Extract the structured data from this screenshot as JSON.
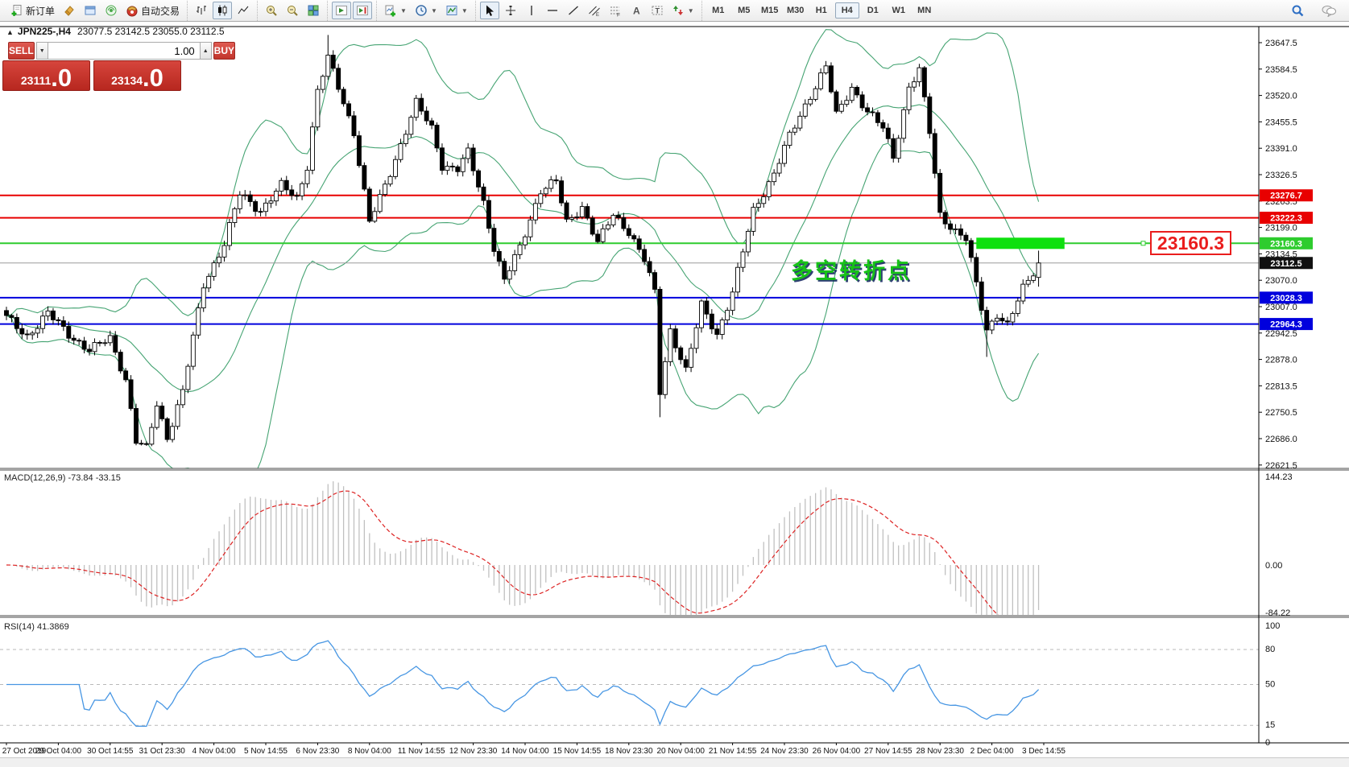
{
  "toolbar": {
    "new_order_label": "新订单",
    "autotrading_label": "自动交易",
    "timeframes": [
      "M1",
      "M5",
      "M15",
      "M30",
      "H1",
      "H4",
      "D1",
      "W1",
      "MN"
    ],
    "active_timeframe": "H4"
  },
  "chart_header": {
    "collapse_glyph": "▲",
    "symbol": "JPN225-,H4",
    "ohlc_text": "23077.5 23142.5 23055.0 23112.5"
  },
  "trade_panel": {
    "sell_label": "SELL",
    "buy_label": "BUY",
    "volume": "1.00",
    "sell_price_main": "23111",
    "sell_price_big": ".0",
    "buy_price_main": "23134",
    "buy_price_big": ".0"
  },
  "annotation": {
    "text": "多空转折点",
    "price_callout": "23160.3"
  },
  "macd_panel": {
    "label": "MACD(12,26,9) -73.84 -33.15",
    "axis_labels": [
      "144.23",
      "0.00",
      "-84.22"
    ]
  },
  "rsi_panel": {
    "label": "RSI(14) 41.3869",
    "axis_labels": [
      "100",
      "80",
      "50",
      "15",
      "0"
    ]
  },
  "colors": {
    "level_red": "#e80000",
    "level_green": "#2ecc2e",
    "level_blue": "#0000dd",
    "highlight_green": "#0ee00e",
    "band_green": "#46a473",
    "macd_hist": "#c0c0c0",
    "macd_signal": "#dd2222",
    "rsi_line": "#4796e3",
    "current_price_line": "#9a9a9a",
    "current_price_box": "#111111"
  },
  "chart_data": {
    "type": "candlestick",
    "symbol": "JPN225-",
    "timeframe": "H4",
    "bars": 200,
    "last_ohlc": {
      "open": 23077.5,
      "high": 23142.5,
      "low": 23055.0,
      "close": 23112.5
    },
    "ylim": [
      22621.5,
      23647.5
    ],
    "price_axis_ticks": [
      "23647.5",
      "23584.5",
      "23520.0",
      "23455.5",
      "23391.0",
      "23326.5",
      "23263.5",
      "23199.0",
      "23134.5",
      "23070.0",
      "23007.0",
      "22942.5",
      "22878.0",
      "22813.5",
      "22750.5",
      "22686.0",
      "22621.5"
    ],
    "time_labels": [
      "27 Oct 2019",
      "29 Oct 04:00",
      "30 Oct 14:55",
      "31 Oct 23:30",
      "4 Nov 04:00",
      "5 Nov 14:55",
      "6 Nov 23:30",
      "8 Nov 04:00",
      "11 Nov 14:55",
      "12 Nov 23:30",
      "14 Nov 04:00",
      "15 Nov 14:55",
      "18 Nov 23:30",
      "20 Nov 04:00",
      "21 Nov 14:55",
      "24 Nov 23:30",
      "26 Nov 04:00",
      "27 Nov 14:55",
      "28 Nov 23:30",
      "2 Dec 04:00",
      "3 Dec 14:55"
    ],
    "bars_per_label": 10,
    "price_anchors": [
      [
        0,
        22980
      ],
      [
        4,
        22935
      ],
      [
        8,
        22990
      ],
      [
        12,
        22940
      ],
      [
        16,
        22900
      ],
      [
        20,
        22930
      ],
      [
        23,
        22830
      ],
      [
        25,
        22680
      ],
      [
        27,
        22660
      ],
      [
        29,
        22770
      ],
      [
        31,
        22690
      ],
      [
        34,
        22800
      ],
      [
        38,
        23060
      ],
      [
        42,
        23160
      ],
      [
        45,
        23280
      ],
      [
        49,
        23240
      ],
      [
        53,
        23300
      ],
      [
        56,
        23270
      ],
      [
        58,
        23350
      ],
      [
        60,
        23530
      ],
      [
        62,
        23610
      ],
      [
        64,
        23540
      ],
      [
        67,
        23430
      ],
      [
        70,
        23210
      ],
      [
        73,
        23300
      ],
      [
        76,
        23400
      ],
      [
        79,
        23500
      ],
      [
        82,
        23440
      ],
      [
        84,
        23350
      ],
      [
        87,
        23340
      ],
      [
        89,
        23380
      ],
      [
        92,
        23260
      ],
      [
        94,
        23150
      ],
      [
        96,
        23070
      ],
      [
        99,
        23150
      ],
      [
        103,
        23290
      ],
      [
        106,
        23310
      ],
      [
        108,
        23210
      ],
      [
        111,
        23250
      ],
      [
        114,
        23160
      ],
      [
        117,
        23230
      ],
      [
        120,
        23190
      ],
      [
        123,
        23120
      ],
      [
        125,
        23040
      ],
      [
        126,
        22800
      ],
      [
        128,
        22950
      ],
      [
        131,
        22850
      ],
      [
        134,
        23010
      ],
      [
        137,
        22940
      ],
      [
        140,
        23040
      ],
      [
        144,
        23240
      ],
      [
        148,
        23330
      ],
      [
        151,
        23420
      ],
      [
        155,
        23520
      ],
      [
        158,
        23590
      ],
      [
        160,
        23470
      ],
      [
        163,
        23540
      ],
      [
        166,
        23480
      ],
      [
        169,
        23440
      ],
      [
        171,
        23370
      ],
      [
        174,
        23540
      ],
      [
        176,
        23580
      ],
      [
        178,
        23430
      ],
      [
        180,
        23230
      ],
      [
        183,
        23190
      ],
      [
        185,
        23170
      ],
      [
        187,
        23060
      ],
      [
        189,
        22950
      ],
      [
        191,
        22990
      ],
      [
        193,
        22960
      ],
      [
        196,
        23050
      ],
      [
        199,
        23112.5
      ]
    ],
    "wick_events": [
      {
        "bar": 62,
        "high_extra": 40
      },
      {
        "bar": 126,
        "low_extra": 45
      },
      {
        "bar": 189,
        "low_extra": 55
      }
    ],
    "horizontal_levels": [
      {
        "price": 23276.7,
        "label": "23276.7",
        "color_key": "level_red"
      },
      {
        "price": 23222.3,
        "label": "23222.3",
        "color_key": "level_red"
      },
      {
        "price": 23160.3,
        "label": "23160.3",
        "color_key": "level_green"
      },
      {
        "price": 23028.3,
        "label": "23028.3",
        "color_key": "level_blue"
      },
      {
        "price": 22964.3,
        "label": "22964.3",
        "color_key": "level_blue"
      }
    ],
    "current_price": {
      "value": 23112.5,
      "label": "23112.5"
    },
    "highlight_rect": {
      "price": 23160.3,
      "bar_start": 187,
      "bar_end": 204
    },
    "indicators": [
      {
        "name": "Bollinger Bands",
        "period": 20,
        "deviation": 2
      },
      {
        "name": "MACD",
        "fast": 12,
        "slow": 26,
        "signal": 9,
        "current_main": -73.84,
        "current_signal": -33.15,
        "axis_max": 144.23,
        "axis_min": -84.22
      },
      {
        "name": "RSI",
        "period": 14,
        "current": 41.3869,
        "levels": [
          80,
          50,
          15
        ]
      }
    ]
  }
}
